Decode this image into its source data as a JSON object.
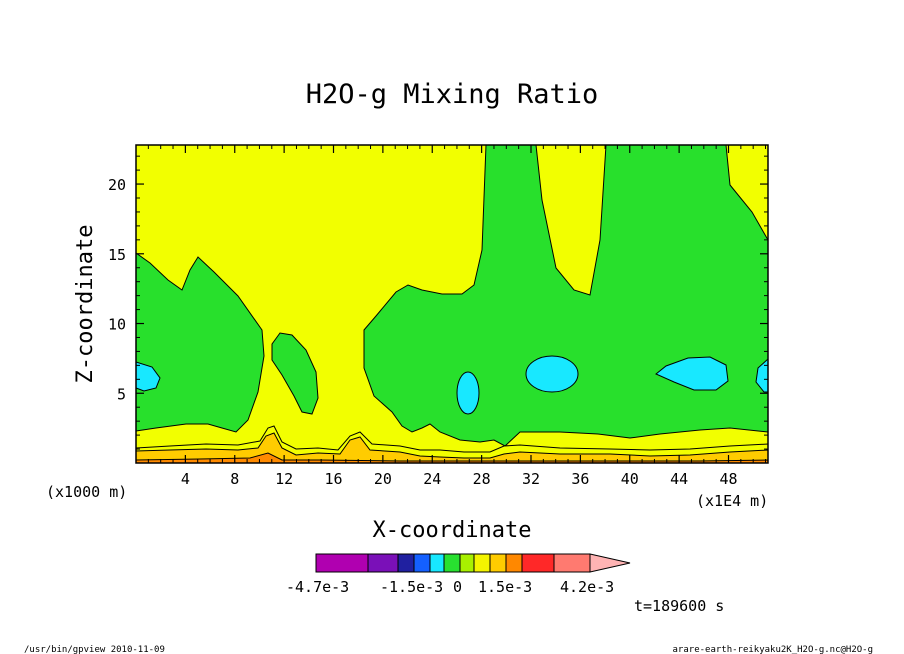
{
  "chart_data": {
    "type": "contour",
    "title": "H2O-g Mixing Ratio",
    "xlabel": "X-coordinate",
    "ylabel": "Z-coordinate",
    "x_unit_left": "(x1000 m)",
    "x_unit_right": "(x1E4 m)",
    "x_ticks": [
      "4",
      "8",
      "12",
      "16",
      "20",
      "24",
      "28",
      "32",
      "36",
      "40",
      "44",
      "48"
    ],
    "y_ticks": [
      "5",
      "10",
      "15",
      "20"
    ],
    "xlim": [
      0,
      51.2
    ],
    "ylim": [
      0,
      22.8
    ],
    "time_label": "t=189600 s",
    "colorbar": {
      "labels": [
        "-4.7e-3",
        "-1.5e-3",
        "0",
        "1.5e-3",
        "4.2e-3"
      ],
      "colors": [
        "#b000b0",
        "#7a10b8",
        "#2020a0",
        "#1460ff",
        "#18e8ff",
        "#28e030",
        "#a8f000",
        "#f4f400",
        "#ffcc00",
        "#ff8800",
        "#ff2828",
        "#ff7a70",
        "#ffb4b4"
      ]
    },
    "fill_colors": {
      "yellow": "#f2ff00",
      "green": "#28e02c",
      "cyan": "#18e8ff",
      "gold": "#ffcc00",
      "orange": "#ff8a00"
    }
  },
  "footer": {
    "left": "/usr/bin/gpview  2010-11-09",
    "right": "arare-earth-reikyaku2K_H2O-g.nc@H2O-g"
  }
}
